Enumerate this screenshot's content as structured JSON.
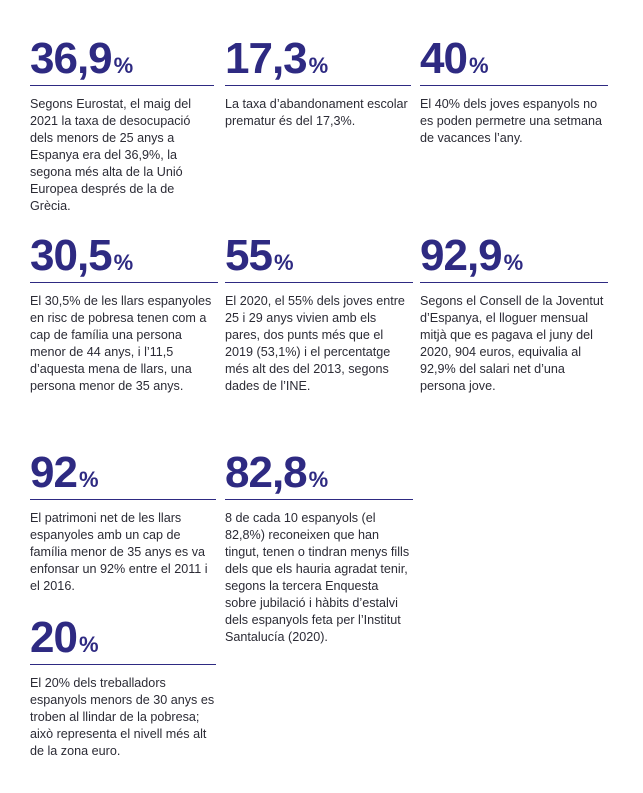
{
  "stats": [
    {
      "number": "36,9",
      "percent": "%",
      "text": "Segons Eurostat, el maig del 2021 la taxa de desocupació dels menors de 25 anys a Espanya era del 36,9%, la segona més alta de la Unió Europea després de la de Grècia."
    },
    {
      "number": "17,3",
      "percent": "%",
      "text": "La taxa d’abandonament escolar prematur és del 17,3%."
    },
    {
      "number": "40",
      "percent": "%",
      "text": "El 40% dels joves espanyols no es poden permetre una setmana de vacances l’any."
    },
    {
      "number": "30,5",
      "percent": "%",
      "text": "El 30,5% de les llars espanyoles en risc de pobresa tenen com a cap de família una persona menor de 44 anys, i l’11,5 d’aquesta mena de llars, una persona menor de 35 anys."
    },
    {
      "number": "55",
      "percent": "%",
      "text": "El 2020, el 55% dels joves entre 25 i 29 anys vivien amb els pares, dos punts més que el 2019 (53,1%) i el percentatge més alt des del 2013, segons dades de l’INE."
    },
    {
      "number": "92,9",
      "percent": "%",
      "text": "Segons el Consell de la Joventut d’Espanya, el lloguer mensual mitjà que es pagava el juny del 2020, 904 euros, equivalia al 92,9% del salari net d’una persona jove."
    },
    {
      "number": "92",
      "percent": "%",
      "text": "El patrimoni net de les llars espanyoles amb un cap de família menor de 35 anys es va enfonsar un 92% entre el 2011 i el 2016."
    },
    {
      "number": "82,8",
      "percent": "%",
      "text": "8 de cada 10 espanyols (el 82,8%) reconeixen que han tingut, tenen o tindran menys fills dels que els hauria agradat tenir, segons la tercera Enquesta sobre jubilació i hàbits d’estalvi dels espanyols feta per l’Institut Santalucía (2020)."
    },
    {
      "number": "20",
      "percent": "%",
      "text": "El 20% dels treballadors espanyols menors de 30 anys es troben al llindar de la pobresa; això representa el nivell més alt de la zona euro."
    }
  ],
  "colors": {
    "accent": "#2e2a82",
    "text": "#2b2b35"
  }
}
